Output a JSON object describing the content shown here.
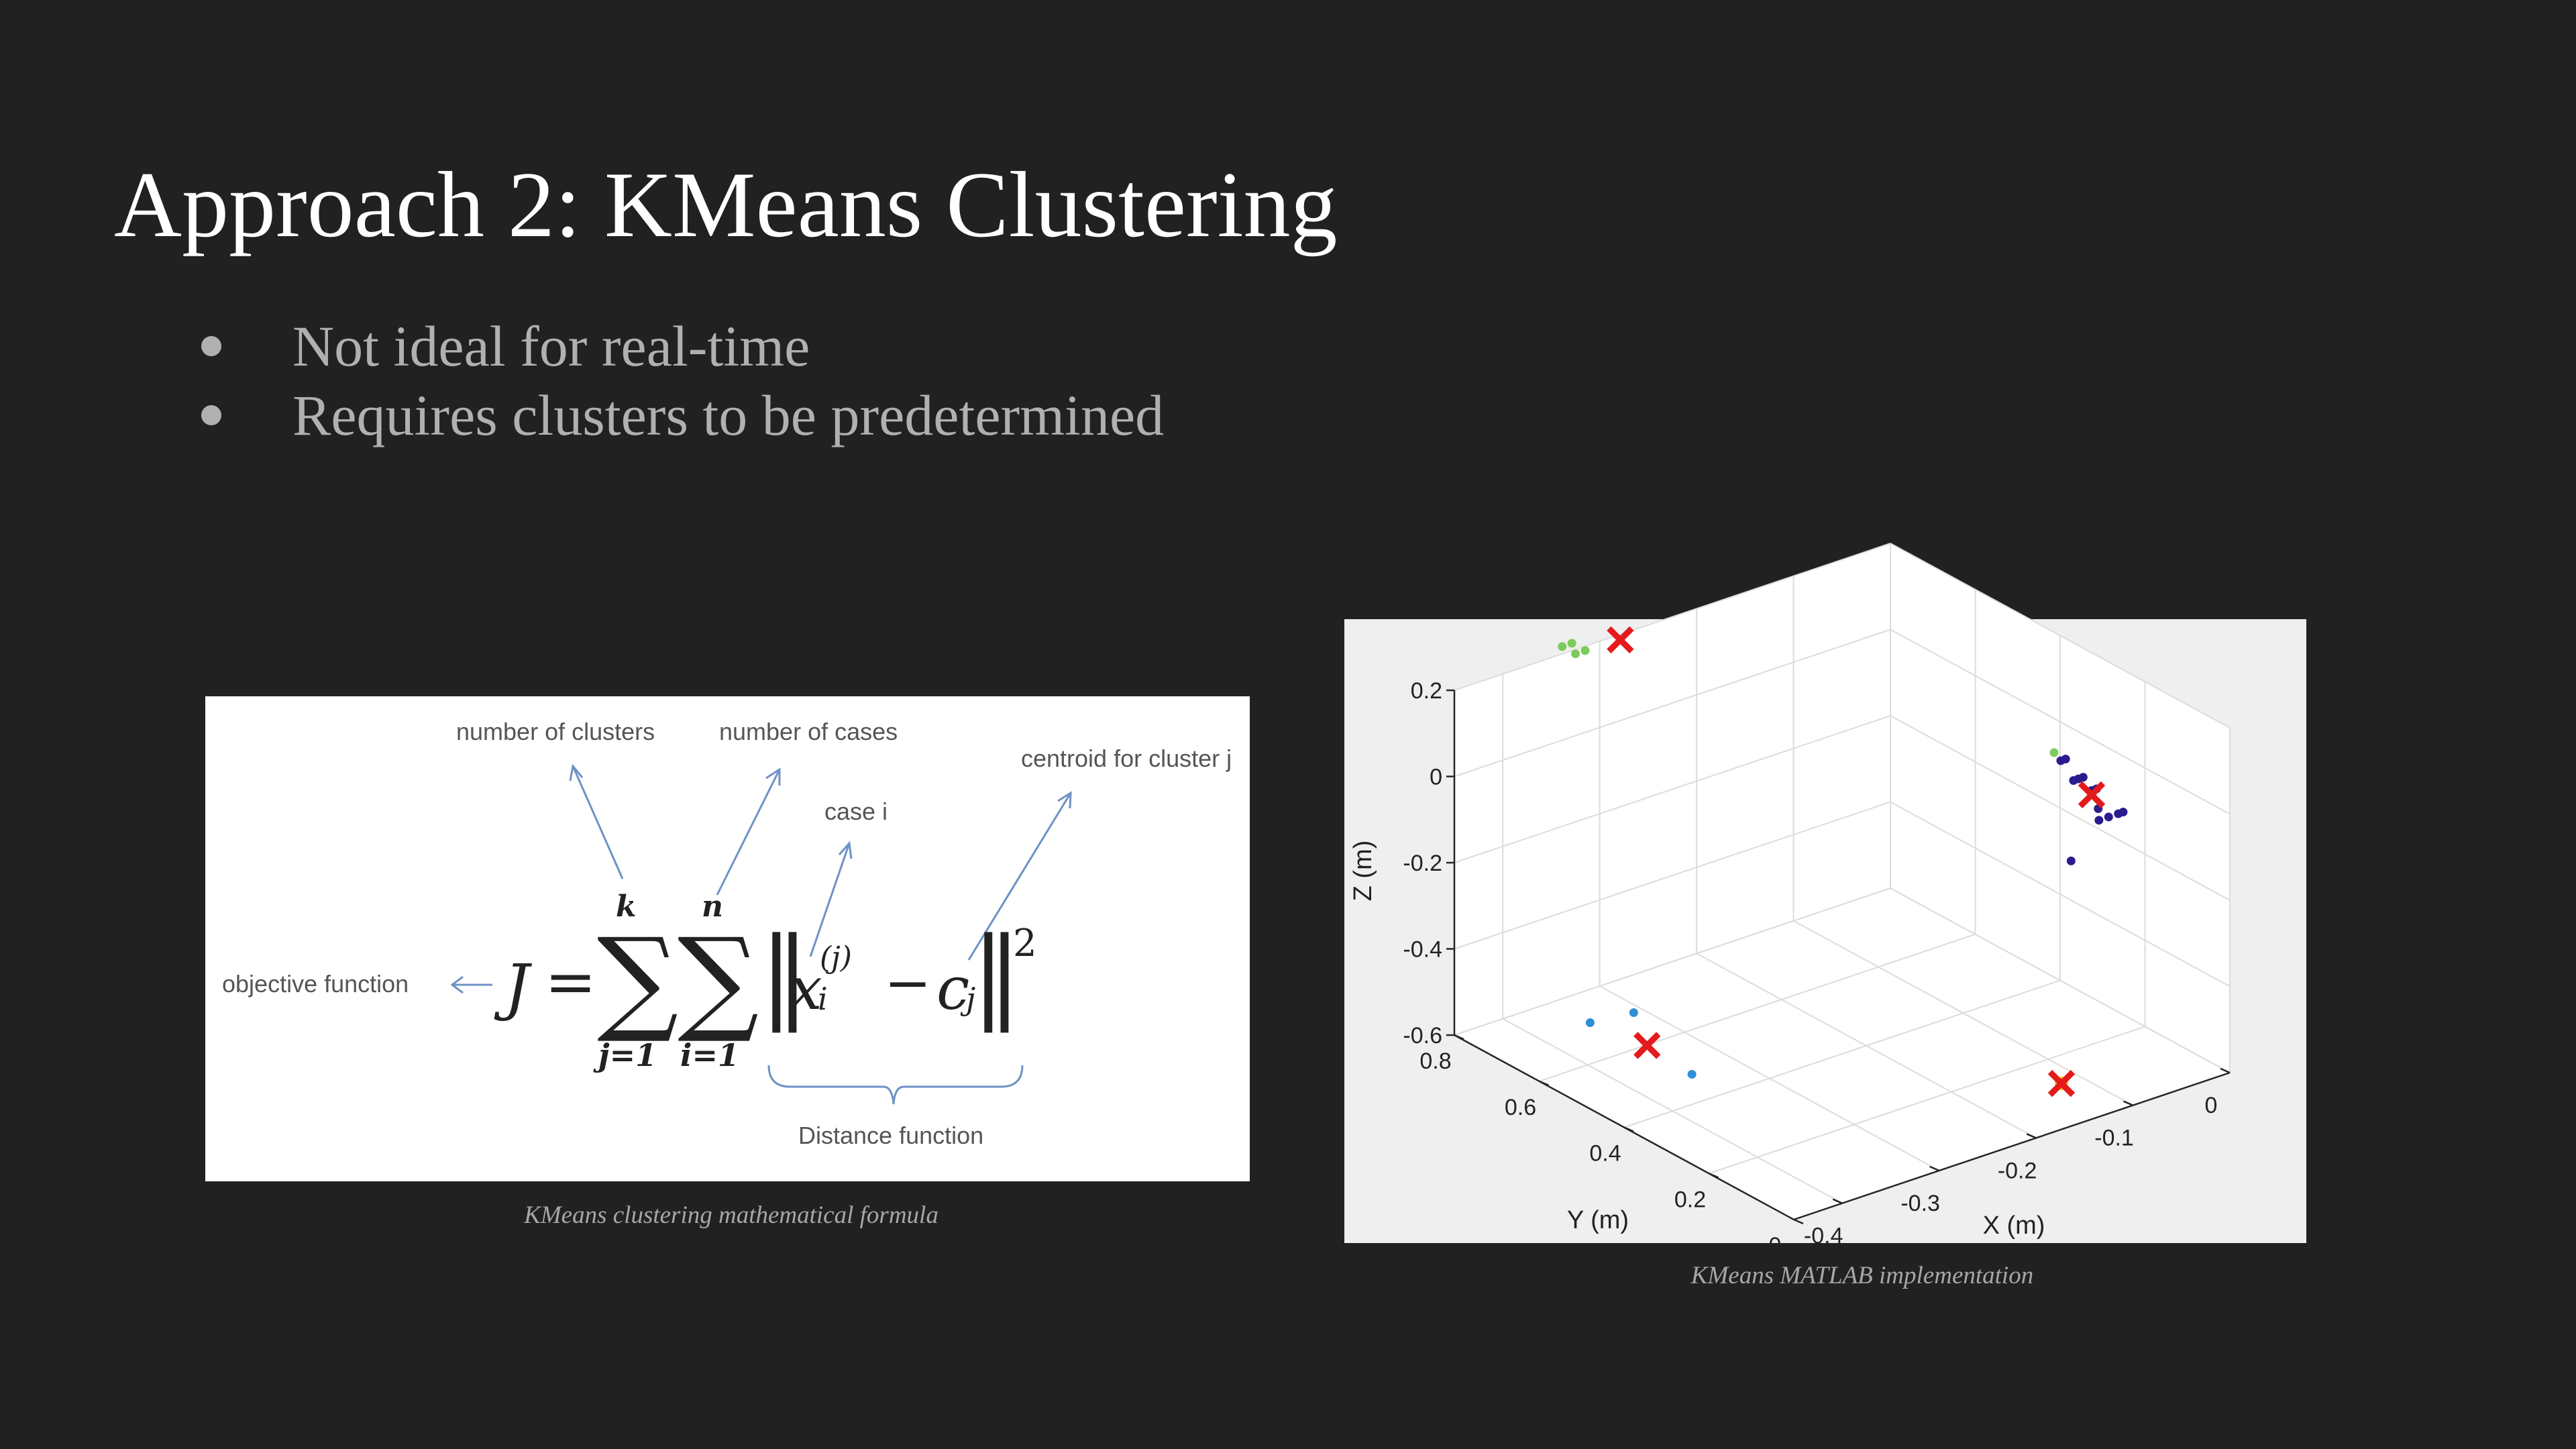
{
  "slide": {
    "title": "Approach 2: KMeans Clustering",
    "bullets": [
      "Not ideal for real-time",
      "Requires clusters to be predetermined"
    ]
  },
  "formula_figure": {
    "caption": "KMeans clustering mathematical formula",
    "labels": {
      "objective": "objective function",
      "clusters": "number of clusters",
      "cases": "number of cases",
      "case_i": "case i",
      "centroid": "centroid for cluster j",
      "distance": "Distance function"
    },
    "formula": {
      "lhs": "J",
      "equals": "=",
      "sum1_top": "k",
      "sum1_bottom": "j=1",
      "sum2_top": "n",
      "sum2_bottom": "i=1",
      "x": "x",
      "x_sup": "(j)",
      "x_sub": "i",
      "minus": "−",
      "c": "c",
      "c_sub": "j",
      "power": "2"
    }
  },
  "chart_figure": {
    "caption": "KMeans MATLAB implementation"
  },
  "chart_data": {
    "type": "scatter",
    "projection": "3d",
    "xlabel": "X (m)",
    "ylabel": "Y (m)",
    "zlabel": "Z (m)",
    "xlim": [
      -0.45,
      0
    ],
    "ylim": [
      0,
      0.8
    ],
    "zlim": [
      -0.6,
      0.2
    ],
    "xticks": [
      "-0.4",
      "-0.3",
      "-0.2",
      "-0.1",
      "0"
    ],
    "yticks": [
      "0",
      "0.2",
      "0.4",
      "0.6",
      "0.8"
    ],
    "zticks": [
      "-0.6",
      "-0.4",
      "-0.2",
      "0",
      "0.2"
    ],
    "grid": true,
    "series": [
      {
        "color": "#7ccc5c",
        "points": [
          [
            -0.33,
            0.82,
            0.2
          ],
          [
            -0.32,
            0.82,
            0.2
          ],
          [
            -0.325,
            0.8,
            0.19
          ],
          [
            -0.315,
            0.8,
            0.19
          ],
          [
            -0.05,
            0.3,
            0.02
          ]
        ]
      },
      {
        "color": "#2b1c8e",
        "points": [
          [
            -0.03,
            0.33,
            -0.03
          ],
          [
            -0.025,
            0.33,
            -0.03
          ],
          [
            -0.03,
            0.3,
            -0.06
          ],
          [
            -0.025,
            0.3,
            -0.06
          ],
          [
            -0.02,
            0.3,
            -0.06
          ],
          [
            -0.02,
            0.28,
            -0.08
          ],
          [
            -0.015,
            0.28,
            -0.08
          ],
          [
            -0.022,
            0.26,
            -0.11
          ],
          [
            -0.03,
            0.24,
            -0.12
          ],
          [
            -0.02,
            0.24,
            -0.12
          ],
          [
            -0.01,
            0.24,
            -0.12
          ],
          [
            -0.005,
            0.24,
            -0.12
          ],
          [
            -0.05,
            0.26,
            -0.21
          ]
        ]
      },
      {
        "color": "#2f8fd6",
        "points": [
          [
            -0.45,
            0.48,
            -0.4
          ],
          [
            -0.38,
            0.4,
            -0.53
          ],
          [
            -0.37,
            0.56,
            -0.48
          ]
        ]
      }
    ],
    "centroids": {
      "color": "#e41a1c",
      "points": [
        [
          -0.27,
          0.82,
          0.17
        ],
        [
          -0.02,
          0.28,
          -0.09
        ],
        [
          -0.4,
          0.46,
          -0.48
        ],
        [
          -0.13,
          0.1,
          -0.58
        ]
      ]
    },
    "highlight_point": {
      "color": "#e8c21a",
      "point": [
        -0.13,
        0.1,
        -0.58
      ]
    }
  }
}
